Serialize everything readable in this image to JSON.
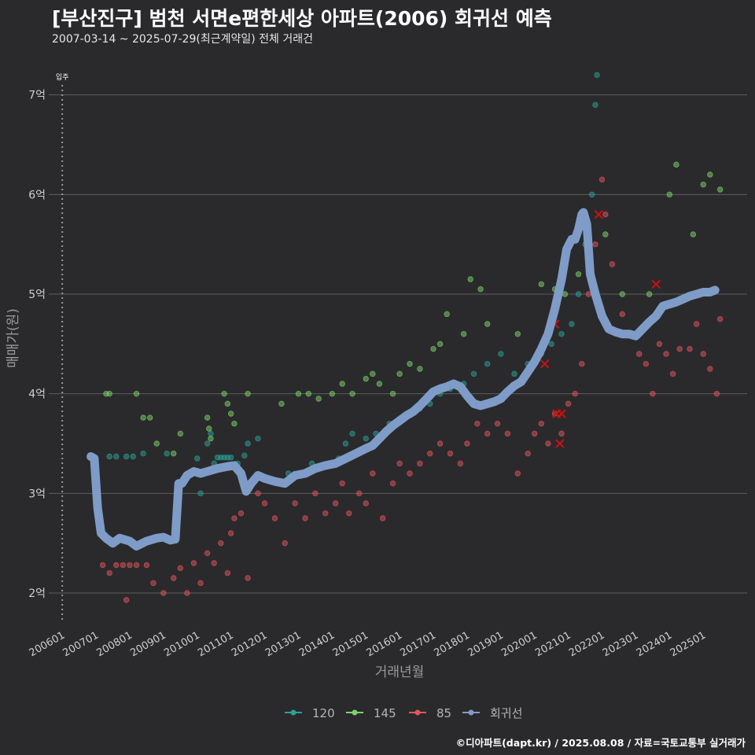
{
  "title": "[부산진구] 범천 서면e편한세상 아파트(2006) 회귀선 예측",
  "subtitle": "2007-03-14 ~ 2025-07-29(최근계약일) 전체 거래건",
  "credit": "©디아파트(dapt.kr) / 2025.08.08 / 자료=국토교통부 실거래가",
  "colors": {
    "background": "#2a2a2c",
    "grid": "#5e5e5e",
    "s120": "#2aa198",
    "s145": "#7ed36a",
    "s85": "#e3545c",
    "regression": "#7f9cc8",
    "cancel": "#cc1111"
  },
  "chart_data": {
    "type": "scatter",
    "title": "[부산진구] 범천 서면e편한세상 아파트(2006) 회귀선 예측",
    "xlabel": "거래년월",
    "ylabel": "매매가(원)",
    "xlim": [
      2005.6,
      2026.3
    ],
    "ylim": [
      1.7,
      7.4
    ],
    "ytick_values": [
      2,
      3,
      4,
      5,
      6,
      7
    ],
    "ytick_labels": [
      "2억",
      "3억",
      "4억",
      "5억",
      "6억",
      "7억"
    ],
    "xtick_values": [
      2006.0,
      2007.0,
      2008.0,
      2009.0,
      2010.0,
      2011.0,
      2012.0,
      2013.0,
      2014.0,
      2015.0,
      2016.0,
      2017.0,
      2018.0,
      2019.0,
      2020.0,
      2021.0,
      2022.0,
      2023.0,
      2024.0,
      2025.0
    ],
    "xtick_labels": [
      "200601",
      "200701",
      "200801",
      "200901",
      "201001",
      "201101",
      "201201",
      "201301",
      "201401",
      "201501",
      "201601",
      "201701",
      "201801",
      "201901",
      "202001",
      "202101",
      "202201",
      "202301",
      "202401",
      "202501"
    ],
    "move_in": {
      "x": 2006.0,
      "label": "입주"
    },
    "legend": [
      "120",
      "145",
      "85",
      "회귀선"
    ],
    "series": [
      {
        "name": "120",
        "points": [
          [
            2007.4,
            3.37
          ],
          [
            2007.6,
            3.37
          ],
          [
            2007.9,
            3.37
          ],
          [
            2008.1,
            3.37
          ],
          [
            2008.4,
            3.4
          ],
          [
            2009.1,
            3.4
          ],
          [
            2010.0,
            3.35
          ],
          [
            2010.1,
            3.0
          ],
          [
            2010.2,
            3.2
          ],
          [
            2010.3,
            3.5
          ],
          [
            2010.4,
            3.6
          ],
          [
            2010.5,
            3.3
          ],
          [
            2010.6,
            3.36
          ],
          [
            2010.7,
            3.36
          ],
          [
            2010.8,
            3.36
          ],
          [
            2010.9,
            3.36
          ],
          [
            2011.0,
            3.36
          ],
          [
            2011.2,
            3.3
          ],
          [
            2011.4,
            3.38
          ],
          [
            2011.5,
            3.5
          ],
          [
            2011.8,
            3.55
          ],
          [
            2012.1,
            3.15
          ],
          [
            2012.7,
            3.2
          ],
          [
            2013.4,
            3.3
          ],
          [
            2014.0,
            3.3
          ],
          [
            2014.2,
            3.35
          ],
          [
            2014.4,
            3.5
          ],
          [
            2014.6,
            3.6
          ],
          [
            2015.0,
            3.55
          ],
          [
            2015.3,
            3.6
          ],
          [
            2015.7,
            3.7
          ],
          [
            2016.0,
            3.75
          ],
          [
            2016.3,
            3.8
          ],
          [
            2016.6,
            3.85
          ],
          [
            2016.9,
            3.9
          ],
          [
            2017.2,
            4.0
          ],
          [
            2017.5,
            4.05
          ],
          [
            2017.9,
            4.1
          ],
          [
            2018.2,
            4.2
          ],
          [
            2018.6,
            4.3
          ],
          [
            2019.0,
            4.4
          ],
          [
            2019.4,
            4.2
          ],
          [
            2019.8,
            4.3
          ],
          [
            2020.2,
            4.4
          ],
          [
            2020.5,
            4.5
          ],
          [
            2020.8,
            4.6
          ],
          [
            2021.1,
            4.7
          ],
          [
            2021.3,
            5.0
          ],
          [
            2021.5,
            5.5
          ],
          [
            2021.7,
            6.0
          ],
          [
            2021.8,
            6.9
          ],
          [
            2021.85,
            7.2
          ]
        ]
      },
      {
        "name": "145",
        "points": [
          [
            2007.3,
            4.0
          ],
          [
            2007.4,
            4.0
          ],
          [
            2008.2,
            4.0
          ],
          [
            2008.4,
            3.76
          ],
          [
            2008.6,
            3.76
          ],
          [
            2008.8,
            3.5
          ],
          [
            2009.3,
            3.4
          ],
          [
            2009.5,
            3.6
          ],
          [
            2010.3,
            3.76
          ],
          [
            2010.35,
            3.65
          ],
          [
            2010.4,
            3.55
          ],
          [
            2010.8,
            4.0
          ],
          [
            2010.9,
            3.9
          ],
          [
            2011.0,
            3.8
          ],
          [
            2011.1,
            3.7
          ],
          [
            2011.5,
            4.0
          ],
          [
            2012.5,
            3.9
          ],
          [
            2013.0,
            4.0
          ],
          [
            2013.3,
            4.0
          ],
          [
            2013.6,
            3.95
          ],
          [
            2014.0,
            4.0
          ],
          [
            2014.3,
            4.1
          ],
          [
            2014.6,
            4.0
          ],
          [
            2015.0,
            4.15
          ],
          [
            2015.2,
            4.2
          ],
          [
            2015.4,
            4.1
          ],
          [
            2015.8,
            4.0
          ],
          [
            2016.0,
            4.2
          ],
          [
            2016.3,
            4.3
          ],
          [
            2016.6,
            4.25
          ],
          [
            2017.0,
            4.45
          ],
          [
            2017.2,
            4.5
          ],
          [
            2017.4,
            4.8
          ],
          [
            2017.9,
            4.6
          ],
          [
            2018.1,
            5.15
          ],
          [
            2018.4,
            5.05
          ],
          [
            2018.6,
            4.7
          ],
          [
            2019.5,
            4.6
          ],
          [
            2020.2,
            5.1
          ],
          [
            2020.6,
            5.05
          ],
          [
            2020.9,
            5.0
          ],
          [
            2021.3,
            5.2
          ],
          [
            2022.1,
            5.6
          ],
          [
            2022.6,
            5.0
          ],
          [
            2023.4,
            5.0
          ],
          [
            2024.0,
            6.0
          ],
          [
            2024.2,
            6.3
          ],
          [
            2024.7,
            5.6
          ],
          [
            2025.0,
            6.1
          ],
          [
            2025.2,
            6.2
          ],
          [
            2025.5,
            6.05
          ]
        ]
      },
      {
        "name": "85",
        "points": [
          [
            2007.2,
            2.28
          ],
          [
            2007.4,
            2.2
          ],
          [
            2007.6,
            2.28
          ],
          [
            2007.8,
            2.28
          ],
          [
            2008.0,
            2.28
          ],
          [
            2008.2,
            2.28
          ],
          [
            2008.5,
            2.28
          ],
          [
            2007.9,
            1.93
          ],
          [
            2008.7,
            2.1
          ],
          [
            2009.0,
            2.0
          ],
          [
            2009.3,
            2.15
          ],
          [
            2009.5,
            2.25
          ],
          [
            2009.7,
            2.0
          ],
          [
            2009.9,
            2.3
          ],
          [
            2010.1,
            2.1
          ],
          [
            2010.3,
            2.4
          ],
          [
            2010.5,
            2.3
          ],
          [
            2010.7,
            2.5
          ],
          [
            2010.9,
            2.2
          ],
          [
            2011.0,
            2.6
          ],
          [
            2011.1,
            2.75
          ],
          [
            2011.3,
            2.8
          ],
          [
            2011.5,
            2.15
          ],
          [
            2011.8,
            3.0
          ],
          [
            2012.0,
            2.9
          ],
          [
            2012.3,
            2.75
          ],
          [
            2012.6,
            2.5
          ],
          [
            2012.9,
            2.9
          ],
          [
            2013.2,
            2.75
          ],
          [
            2013.5,
            3.0
          ],
          [
            2013.8,
            2.8
          ],
          [
            2014.1,
            2.9
          ],
          [
            2014.3,
            3.1
          ],
          [
            2014.5,
            2.8
          ],
          [
            2014.8,
            3.0
          ],
          [
            2015.0,
            2.9
          ],
          [
            2015.2,
            3.2
          ],
          [
            2015.5,
            2.75
          ],
          [
            2015.8,
            3.1
          ],
          [
            2016.0,
            3.3
          ],
          [
            2016.3,
            3.2
          ],
          [
            2016.6,
            3.3
          ],
          [
            2016.9,
            3.4
          ],
          [
            2017.2,
            3.5
          ],
          [
            2017.5,
            3.4
          ],
          [
            2017.8,
            3.3
          ],
          [
            2018.0,
            3.5
          ],
          [
            2018.3,
            3.7
          ],
          [
            2018.6,
            3.6
          ],
          [
            2018.9,
            3.7
          ],
          [
            2019.2,
            3.6
          ],
          [
            2019.5,
            3.2
          ],
          [
            2019.8,
            3.4
          ],
          [
            2020.0,
            3.6
          ],
          [
            2020.2,
            3.7
          ],
          [
            2020.4,
            3.5
          ],
          [
            2020.6,
            3.8
          ],
          [
            2020.8,
            3.6
          ],
          [
            2021.0,
            3.9
          ],
          [
            2021.2,
            4.0
          ],
          [
            2021.4,
            4.3
          ],
          [
            2021.6,
            5.0
          ],
          [
            2021.8,
            5.5
          ],
          [
            2022.0,
            6.15
          ],
          [
            2022.1,
            5.8
          ],
          [
            2022.3,
            5.3
          ],
          [
            2022.6,
            4.8
          ],
          [
            2022.9,
            4.6
          ],
          [
            2023.1,
            4.4
          ],
          [
            2023.3,
            4.3
          ],
          [
            2023.5,
            4.0
          ],
          [
            2023.7,
            4.5
          ],
          [
            2023.9,
            4.4
          ],
          [
            2024.1,
            4.2
          ],
          [
            2024.3,
            4.45
          ],
          [
            2024.6,
            4.45
          ],
          [
            2024.8,
            4.7
          ],
          [
            2025.0,
            4.4
          ],
          [
            2025.2,
            4.25
          ],
          [
            2025.4,
            4.0
          ],
          [
            2025.5,
            4.75
          ]
        ]
      }
    ],
    "cancelled": [
      [
        2020.3,
        4.3
      ],
      [
        2020.6,
        4.7
      ],
      [
        2020.65,
        3.8
      ],
      [
        2020.75,
        3.5
      ],
      [
        2020.8,
        3.8
      ],
      [
        2021.9,
        5.8
      ],
      [
        2023.6,
        5.1
      ]
    ],
    "regression": {
      "name": "회귀선",
      "points": [
        [
          2006.85,
          3.37
        ],
        [
          2006.95,
          3.35
        ],
        [
          2007.05,
          2.85
        ],
        [
          2007.15,
          2.6
        ],
        [
          2007.3,
          2.55
        ],
        [
          2007.5,
          2.5
        ],
        [
          2007.7,
          2.55
        ],
        [
          2008.0,
          2.52
        ],
        [
          2008.2,
          2.47
        ],
        [
          2008.5,
          2.52
        ],
        [
          2008.8,
          2.55
        ],
        [
          2009.0,
          2.56
        ],
        [
          2009.2,
          2.53
        ],
        [
          2009.35,
          2.54
        ],
        [
          2009.45,
          3.1
        ],
        [
          2009.55,
          3.1
        ],
        [
          2009.7,
          3.18
        ],
        [
          2009.9,
          3.22
        ],
        [
          2010.1,
          3.2
        ],
        [
          2010.3,
          3.22
        ],
        [
          2010.6,
          3.25
        ],
        [
          2010.9,
          3.27
        ],
        [
          2011.1,
          3.28
        ],
        [
          2011.3,
          3.2
        ],
        [
          2011.45,
          3.02
        ],
        [
          2011.6,
          3.1
        ],
        [
          2011.8,
          3.18
        ],
        [
          2012.0,
          3.15
        ],
        [
          2012.3,
          3.12
        ],
        [
          2012.6,
          3.1
        ],
        [
          2012.9,
          3.18
        ],
        [
          2013.2,
          3.2
        ],
        [
          2013.5,
          3.25
        ],
        [
          2013.8,
          3.28
        ],
        [
          2014.1,
          3.3
        ],
        [
          2014.4,
          3.35
        ],
        [
          2014.7,
          3.4
        ],
        [
          2015.0,
          3.45
        ],
        [
          2015.2,
          3.48
        ],
        [
          2015.4,
          3.55
        ],
        [
          2015.6,
          3.62
        ],
        [
          2015.8,
          3.68
        ],
        [
          2016.0,
          3.73
        ],
        [
          2016.2,
          3.78
        ],
        [
          2016.4,
          3.82
        ],
        [
          2016.6,
          3.88
        ],
        [
          2016.8,
          3.95
        ],
        [
          2017.0,
          4.02
        ],
        [
          2017.2,
          4.05
        ],
        [
          2017.4,
          4.07
        ],
        [
          2017.6,
          4.1
        ],
        [
          2017.8,
          4.07
        ],
        [
          2018.0,
          3.98
        ],
        [
          2018.2,
          3.9
        ],
        [
          2018.4,
          3.88
        ],
        [
          2018.6,
          3.9
        ],
        [
          2018.8,
          3.92
        ],
        [
          2019.0,
          3.95
        ],
        [
          2019.2,
          4.02
        ],
        [
          2019.4,
          4.08
        ],
        [
          2019.6,
          4.12
        ],
        [
          2019.8,
          4.22
        ],
        [
          2020.0,
          4.32
        ],
        [
          2020.2,
          4.45
        ],
        [
          2020.4,
          4.6
        ],
        [
          2020.6,
          4.85
        ],
        [
          2020.8,
          5.15
        ],
        [
          2020.95,
          5.45
        ],
        [
          2021.1,
          5.55
        ],
        [
          2021.2,
          5.55
        ],
        [
          2021.3,
          5.65
        ],
        [
          2021.4,
          5.8
        ],
        [
          2021.45,
          5.82
        ],
        [
          2021.55,
          5.7
        ],
        [
          2021.65,
          5.2
        ],
        [
          2021.8,
          5.0
        ],
        [
          2022.0,
          4.78
        ],
        [
          2022.2,
          4.65
        ],
        [
          2022.4,
          4.62
        ],
        [
          2022.6,
          4.6
        ],
        [
          2022.8,
          4.6
        ],
        [
          2023.0,
          4.58
        ],
        [
          2023.2,
          4.65
        ],
        [
          2023.4,
          4.72
        ],
        [
          2023.6,
          4.78
        ],
        [
          2023.8,
          4.88
        ],
        [
          2024.0,
          4.9
        ],
        [
          2024.2,
          4.92
        ],
        [
          2024.4,
          4.95
        ],
        [
          2024.6,
          4.98
        ],
        [
          2024.8,
          5.0
        ],
        [
          2025.0,
          5.02
        ],
        [
          2025.2,
          5.02
        ],
        [
          2025.35,
          5.04
        ]
      ]
    }
  }
}
